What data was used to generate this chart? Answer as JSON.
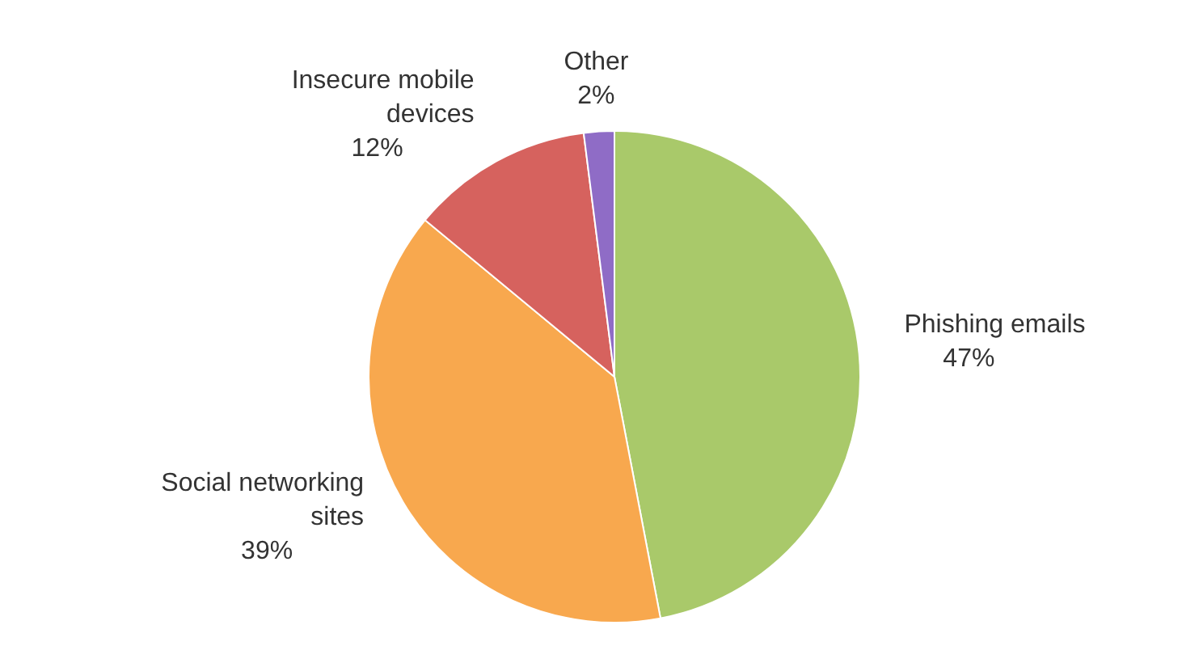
{
  "chart_data": {
    "type": "pie",
    "categories": [
      "Phishing emails",
      "Social networking sites",
      "Insecure mobile devices",
      "Other"
    ],
    "values": [
      47,
      39,
      12,
      2
    ],
    "value_labels": [
      "47%",
      "39%",
      "12%",
      "2%"
    ],
    "colors": [
      "#a9c96a",
      "#f8a84e",
      "#d6625e",
      "#8f6cc6"
    ],
    "legend": false
  }
}
